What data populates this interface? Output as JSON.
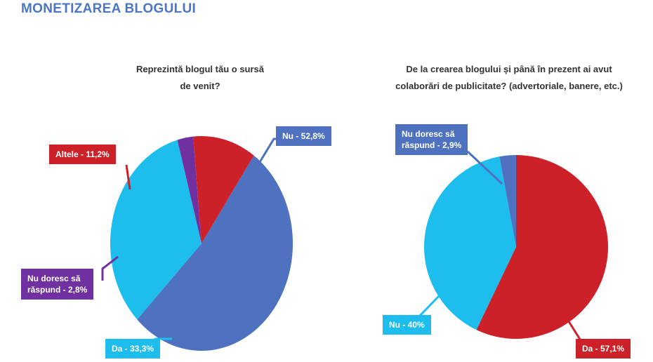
{
  "page": {
    "title": "MONETIZAREA BLOGULUI"
  },
  "chart_data": [
    {
      "type": "pie",
      "title": "Reprezintă blogul tău o sursă de venit?",
      "title_lines": [
        "Reprezintă blogul tău o sursă",
        "de venit?"
      ],
      "slices": [
        {
          "name": "Nu",
          "value": 52.8,
          "color": "#4f72c0",
          "label": "Nu - 52,8%"
        },
        {
          "name": "Da",
          "value": 33.3,
          "color": "#1dbdee",
          "label": "Da - 33,3%"
        },
        {
          "name": "Nu doresc să răspund",
          "value": 2.8,
          "color": "#7030a0",
          "label_lines": [
            "Nu doresc să",
            "răspund - 2,8%"
          ]
        },
        {
          "name": "Altele",
          "value": 11.2,
          "color": "#cc2128",
          "label": "Altele - 11,2%"
        }
      ]
    },
    {
      "type": "pie",
      "title": "De la crearea blogului și până în prezent ai avut colaborări de publicitate? (advertoriale, banere, etc.)",
      "title_lines": [
        "De la crearea blogului și până în prezent ai avut",
        "colaborări de publicitate? (advertoriale, banere, etc.)"
      ],
      "slices": [
        {
          "name": "Da",
          "value": 57.1,
          "color": "#cc2128",
          "label": "Da - 57,1%"
        },
        {
          "name": "Nu",
          "value": 40,
          "color": "#1dbdee",
          "label": "Nu - 40%"
        },
        {
          "name": "Nu doresc să răspund",
          "value": 2.9,
          "color": "#4f72c0",
          "label_lines": [
            "Nu doresc să",
            "răspund - 2,9%"
          ]
        }
      ]
    }
  ]
}
